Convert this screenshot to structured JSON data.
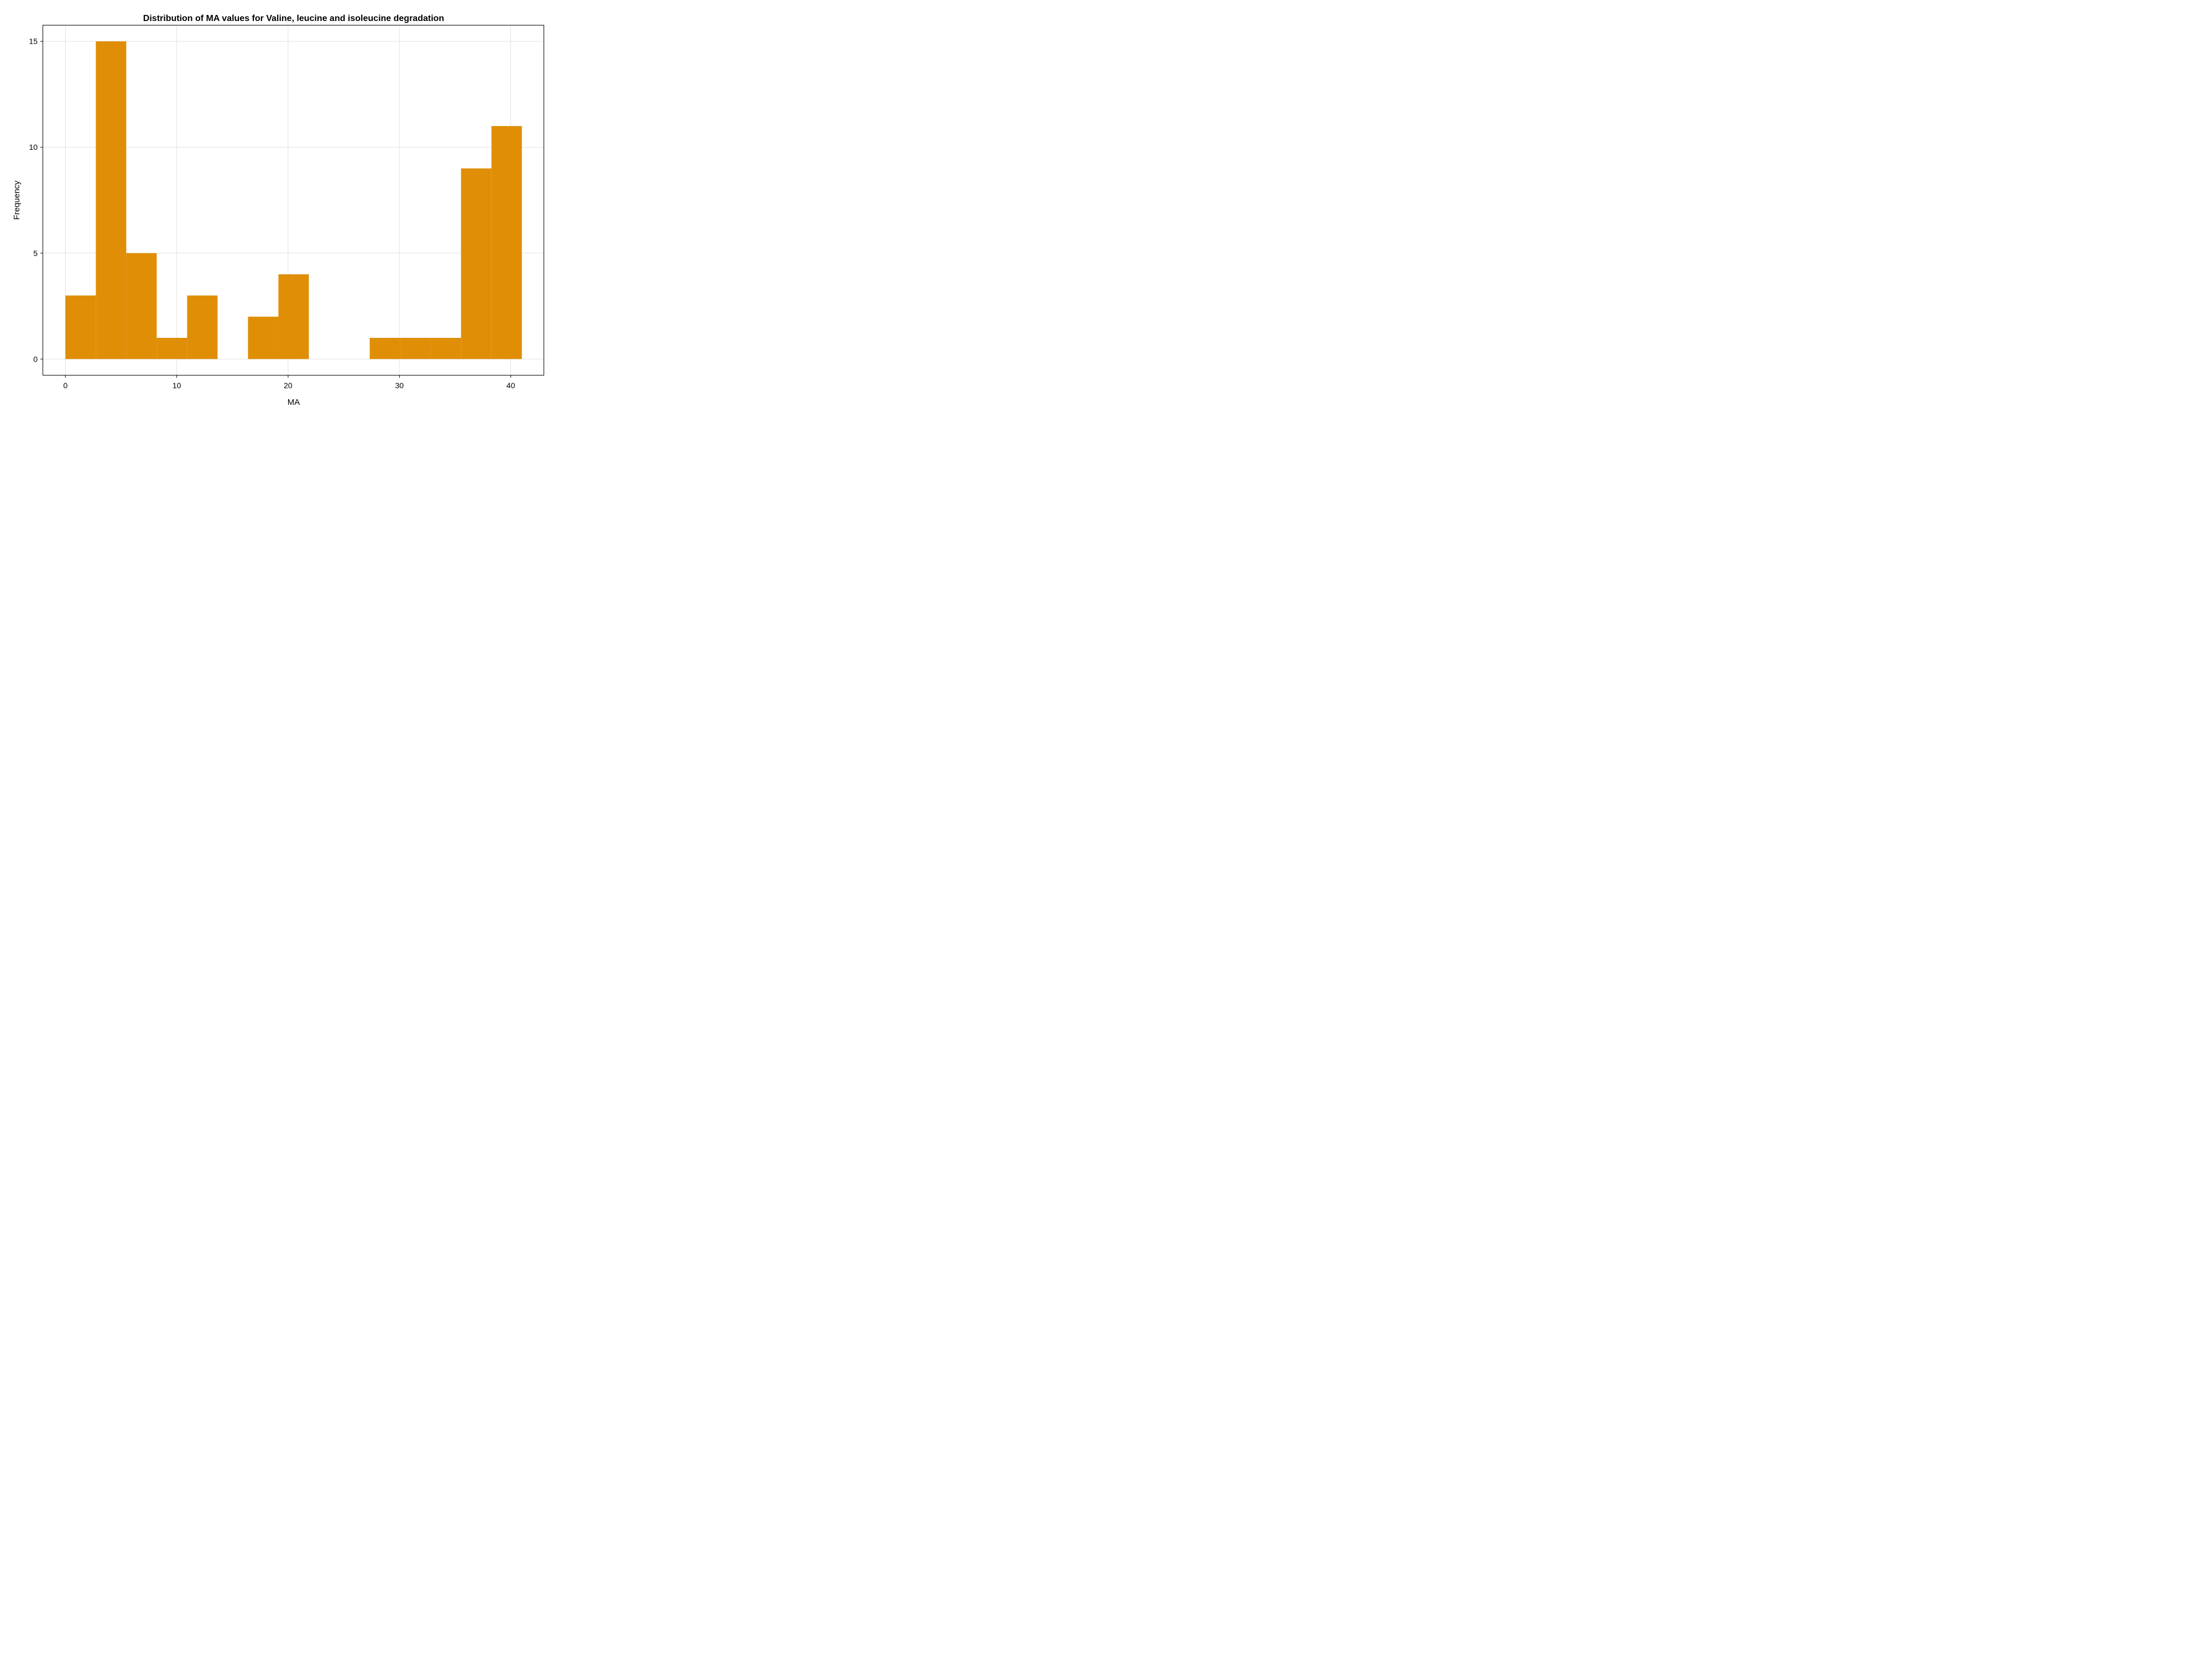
{
  "chart_data": {
    "type": "bar",
    "title": "Distribution of MA values for Valine, leucine and isoleucine degradation",
    "xlabel": "MA",
    "ylabel": "Frequency",
    "bar_color": "#E08E06",
    "grid": true,
    "xlim": [
      -2,
      43
    ],
    "ylim": [
      -0.75,
      15.75
    ],
    "x_ticks": [
      0,
      10,
      20,
      30,
      40
    ],
    "y_ticks": [
      0,
      5,
      10,
      15
    ],
    "bin_width": 2.7333,
    "bins": [
      {
        "x0": 0.0,
        "x1": 2.7333,
        "count": 3
      },
      {
        "x0": 2.7333,
        "x1": 5.4667,
        "count": 15
      },
      {
        "x0": 5.4667,
        "x1": 8.2,
        "count": 5
      },
      {
        "x0": 8.2,
        "x1": 10.9333,
        "count": 1
      },
      {
        "x0": 10.9333,
        "x1": 13.6667,
        "count": 3
      },
      {
        "x0": 13.6667,
        "x1": 16.4,
        "count": 0
      },
      {
        "x0": 16.4,
        "x1": 19.1333,
        "count": 2
      },
      {
        "x0": 19.1333,
        "x1": 21.8667,
        "count": 4
      },
      {
        "x0": 21.8667,
        "x1": 24.6,
        "count": 0
      },
      {
        "x0": 24.6,
        "x1": 27.3333,
        "count": 0
      },
      {
        "x0": 27.3333,
        "x1": 30.0667,
        "count": 1
      },
      {
        "x0": 30.0667,
        "x1": 32.8,
        "count": 1
      },
      {
        "x0": 32.8,
        "x1": 35.5333,
        "count": 1
      },
      {
        "x0": 35.5333,
        "x1": 38.2667,
        "count": 9
      },
      {
        "x0": 38.2667,
        "x1": 41.0,
        "count": 11
      }
    ]
  }
}
